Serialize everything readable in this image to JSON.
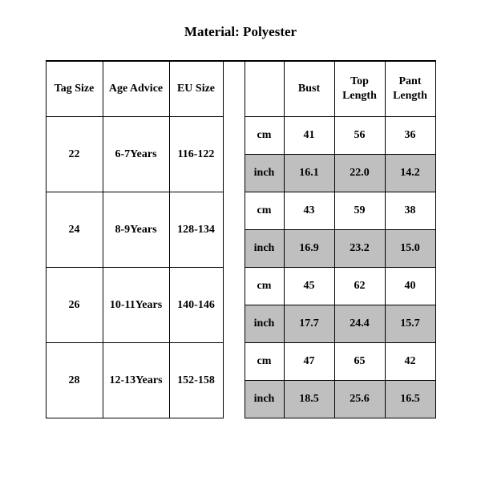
{
  "title": "Material: Polyester",
  "table": {
    "type": "table",
    "columns": [
      "Tag Size",
      "Age Advice",
      "EU Size",
      "",
      "Bust",
      "Top Length",
      "Pant Length"
    ],
    "unit_labels": {
      "cm": "cm",
      "inch": "inch"
    },
    "rows": [
      {
        "tag": "22",
        "age": "6-7Years",
        "eu": "116-122",
        "cm": {
          "bust": "41",
          "top": "56",
          "pant": "36"
        },
        "inch": {
          "bust": "16.1",
          "top": "22.0",
          "pant": "14.2"
        }
      },
      {
        "tag": "24",
        "age": "8-9Years",
        "eu": "128-134",
        "cm": {
          "bust": "43",
          "top": "59",
          "pant": "38"
        },
        "inch": {
          "bust": "16.9",
          "top": "23.2",
          "pant": "15.0"
        }
      },
      {
        "tag": "26",
        "age": "10-11Years",
        "eu": "140-146",
        "cm": {
          "bust": "45",
          "top": "62",
          "pant": "40"
        },
        "inch": {
          "bust": "17.7",
          "top": "24.4",
          "pant": "15.7"
        }
      },
      {
        "tag": "28",
        "age": "12-13Years",
        "eu": "152-158",
        "cm": {
          "bust": "47",
          "top": "65",
          "pant": "42"
        },
        "inch": {
          "bust": "18.5",
          "top": "25.6",
          "pant": "16.5"
        }
      }
    ],
    "colors": {
      "background": "#ffffff",
      "text": "#000000",
      "border": "#000000",
      "shaded": "#bfbfbf"
    },
    "font": {
      "family": "Times New Roman",
      "size_body": 14,
      "size_title": 17,
      "weight": "bold"
    }
  }
}
